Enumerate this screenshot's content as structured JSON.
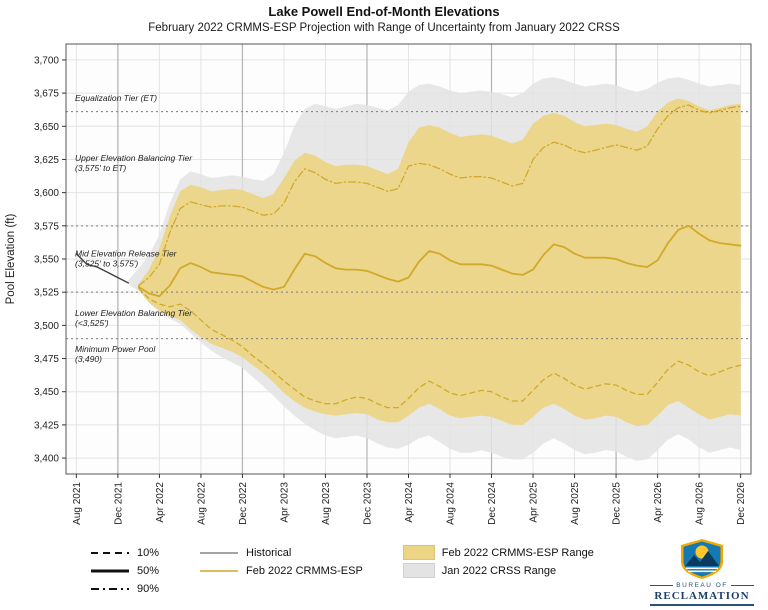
{
  "title": "Lake Powell End-of-Month Elevations",
  "subtitle": "February 2022 CRMMS-ESP Projection with Range of Uncertainty from January 2022 CRSS",
  "tiers": [
    {
      "line1": "Equalization Tier (ET)",
      "line2": "",
      "y": 3669
    },
    {
      "line1": "Upper Elevation Balancing Tier",
      "line2": "(3,575' to ET)",
      "y": 3624
    },
    {
      "line1": "Mid Elevation Release Tier",
      "line2": "(3,525' to 3,575')",
      "y": 3552
    },
    {
      "line1": "Lower Elevation Balancing Tier",
      "line2": "(<3,525')",
      "y": 3507
    },
    {
      "line1": "Minimum Power Pool",
      "line2": "(3,490)",
      "y": 3480
    }
  ],
  "legend": {
    "percentiles": [
      {
        "label": "10%",
        "dash": "dashed"
      },
      {
        "label": "50%",
        "dash": "solid"
      },
      {
        "label": "90%",
        "dash": "dashdot"
      }
    ],
    "lines": [
      {
        "label": "Historical",
        "color": "#6e6e6e"
      },
      {
        "label": "Feb 2022 CRMMS-ESP",
        "color": "#d2a929"
      }
    ],
    "boxes": [
      {
        "label": "Feb 2022 CRMMS-ESP Range",
        "color": "#ecd584"
      },
      {
        "label": "Jan 2022 CRSS Range",
        "color": "#e3e3e3"
      }
    ]
  },
  "logo": {
    "bureau": "BUREAU OF",
    "name": "RECLAMATION"
  },
  "chart_data": {
    "type": "line",
    "title": "Lake Powell End-of-Month Elevations",
    "subtitle": "February 2022 CRMMS-ESP Projection with Range of Uncertainty from January 2022 CRSS",
    "xlabel": "",
    "ylabel": "Pool Elevation (ft)",
    "ylim": [
      3388,
      3712
    ],
    "n_months": 65,
    "x_axis": {
      "tick_labels": [
        "Aug 2021",
        "Dec 2021",
        "Apr 2022",
        "Aug 2022",
        "Dec 2022",
        "Apr 2023",
        "Aug 2023",
        "Dec 2023",
        "Apr 2024",
        "Aug 2024",
        "Dec 2024",
        "Apr 2025",
        "Aug 2025",
        "Dec 2025",
        "Apr 2026",
        "Aug 2026",
        "Dec 2026"
      ],
      "tick_indices": [
        0,
        4,
        8,
        12,
        16,
        20,
        24,
        28,
        32,
        36,
        40,
        44,
        48,
        52,
        56,
        60,
        64
      ]
    },
    "y_axis": {
      "tick_values": [
        3400,
        3425,
        3450,
        3475,
        3500,
        3525,
        3550,
        3575,
        3600,
        3625,
        3650,
        3675,
        3700
      ],
      "tick_labels": [
        "3,400",
        "3,425",
        "3,450",
        "3,475",
        "3,500",
        "3,525",
        "3,550",
        "3,575",
        "3,600",
        "3,625",
        "3,650",
        "3,675",
        "3,700"
      ]
    },
    "year_line_indices": [
      4,
      16,
      28,
      40,
      52
    ],
    "reference_lines": [
      3661,
      3575,
      3525,
      3490
    ],
    "bands": [
      {
        "name": "Jan 2022 CRSS Range",
        "color": "#e3e3e3",
        "opacity": 0.85,
        "start_index": 5,
        "upper": [
          3534,
          3543,
          3553,
          3568,
          3592,
          3610,
          3616,
          3614,
          3611,
          3612,
          3613,
          3612,
          3610,
          3609,
          3614,
          3630,
          3650,
          3663,
          3667,
          3665,
          3663,
          3665,
          3667,
          3666,
          3664,
          3662,
          3666,
          3676,
          3681,
          3682,
          3680,
          3677,
          3675,
          3676,
          3677,
          3676,
          3674,
          3672,
          3675,
          3682,
          3686,
          3687,
          3685,
          3682,
          3680,
          3681,
          3682,
          3681,
          3678,
          3676,
          3678,
          3683,
          3686,
          3687,
          3685,
          3682,
          3680,
          3681,
          3682,
          3681
        ],
        "lower": [
          3531,
          3526,
          3517,
          3510,
          3505,
          3501,
          3494,
          3487,
          3481,
          3476,
          3472,
          3468,
          3461,
          3454,
          3447,
          3439,
          3432,
          3426,
          3421,
          3417,
          3415,
          3416,
          3417,
          3415,
          3411,
          3408,
          3407,
          3410,
          3415,
          3417,
          3412,
          3407,
          3404,
          3404,
          3406,
          3404,
          3401,
          3399,
          3399,
          3404,
          3411,
          3415,
          3411,
          3406,
          3403,
          3404,
          3406,
          3405,
          3401,
          3398,
          3399,
          3406,
          3414,
          3418,
          3414,
          3408,
          3404,
          3406,
          3408,
          3406
        ]
      },
      {
        "name": "Feb 2022 CRMMS-ESP Range",
        "color": "#ecd584",
        "opacity": 0.92,
        "start_index": 6,
        "upper": [
          3531,
          3542,
          3558,
          3582,
          3601,
          3606,
          3604,
          3601,
          3602,
          3603,
          3602,
          3599,
          3596,
          3599,
          3611,
          3624,
          3630,
          3628,
          3623,
          3620,
          3621,
          3621,
          3620,
          3617,
          3614,
          3618,
          3638,
          3649,
          3651,
          3649,
          3645,
          3642,
          3643,
          3644,
          3643,
          3640,
          3637,
          3640,
          3652,
          3658,
          3660,
          3658,
          3653,
          3650,
          3651,
          3652,
          3651,
          3648,
          3646,
          3650,
          3661,
          3668,
          3671,
          3669,
          3665,
          3662,
          3664,
          3666,
          3667
        ],
        "lower": [
          3527,
          3517,
          3511,
          3507,
          3504,
          3497,
          3491,
          3486,
          3483,
          3480,
          3476,
          3470,
          3464,
          3457,
          3449,
          3443,
          3438,
          3435,
          3433,
          3432,
          3433,
          3434,
          3433,
          3429,
          3427,
          3427,
          3432,
          3438,
          3441,
          3437,
          3432,
          3430,
          3431,
          3432,
          3431,
          3428,
          3425,
          3425,
          3431,
          3438,
          3441,
          3437,
          3432,
          3429,
          3430,
          3432,
          3431,
          3427,
          3424,
          3425,
          3432,
          3440,
          3443,
          3438,
          3433,
          3429,
          3431,
          3433,
          3432
        ]
      }
    ],
    "series": [
      {
        "name": "Historical",
        "color": "#3f3f3f",
        "dash": "solid",
        "width": 1.4,
        "start_index": 0,
        "values": [
          3554,
          3546,
          3544,
          3540,
          3536,
          3532
        ]
      },
      {
        "name": "Feb 2022 CRMMS-ESP (50%)",
        "color": "#d2a929",
        "dash": "solid",
        "width": 1.8,
        "start_index": 6,
        "values": [
          3529,
          3524,
          3522,
          3530,
          3543,
          3547,
          3544,
          3540,
          3539,
          3538,
          3537,
          3533,
          3529,
          3527,
          3529,
          3542,
          3554,
          3552,
          3547,
          3543,
          3542,
          3542,
          3541,
          3538,
          3535,
          3533,
          3536,
          3548,
          3556,
          3554,
          3549,
          3546,
          3546,
          3546,
          3545,
          3542,
          3539,
          3538,
          3542,
          3553,
          3561,
          3559,
          3554,
          3551,
          3551,
          3551,
          3550,
          3547,
          3545,
          3544,
          3549,
          3562,
          3572,
          3575,
          3569,
          3564,
          3562,
          3561,
          3560
        ]
      },
      {
        "name": "Feb 2022 CRMMS-ESP (10%)",
        "color": "#d2a929",
        "dash": "dashed",
        "width": 1.3,
        "start_index": 6,
        "values": [
          3528,
          3520,
          3516,
          3514,
          3516,
          3511,
          3504,
          3497,
          3493,
          3489,
          3484,
          3477,
          3471,
          3465,
          3458,
          3452,
          3446,
          3443,
          3441,
          3441,
          3444,
          3446,
          3445,
          3441,
          3438,
          3438,
          3445,
          3453,
          3458,
          3454,
          3449,
          3447,
          3449,
          3451,
          3450,
          3446,
          3443,
          3443,
          3451,
          3459,
          3464,
          3460,
          3455,
          3452,
          3454,
          3456,
          3455,
          3451,
          3448,
          3448,
          3457,
          3467,
          3473,
          3470,
          3465,
          3462,
          3465,
          3468,
          3470
        ]
      },
      {
        "name": "Feb 2022 CRMMS-ESP (90%)",
        "color": "#d2a929",
        "dash": "dashdot",
        "width": 1.3,
        "start_index": 6,
        "values": [
          3530,
          3536,
          3546,
          3570,
          3588,
          3593,
          3591,
          3589,
          3590,
          3590,
          3589,
          3586,
          3583,
          3584,
          3592,
          3608,
          3618,
          3615,
          3610,
          3607,
          3608,
          3608,
          3607,
          3604,
          3601,
          3603,
          3620,
          3622,
          3621,
          3618,
          3614,
          3611,
          3612,
          3612,
          3611,
          3608,
          3605,
          3607,
          3625,
          3634,
          3638,
          3636,
          3632,
          3630,
          3632,
          3634,
          3636,
          3634,
          3632,
          3635,
          3648,
          3658,
          3664,
          3666,
          3662,
          3660,
          3662,
          3664,
          3665
        ]
      }
    ]
  }
}
